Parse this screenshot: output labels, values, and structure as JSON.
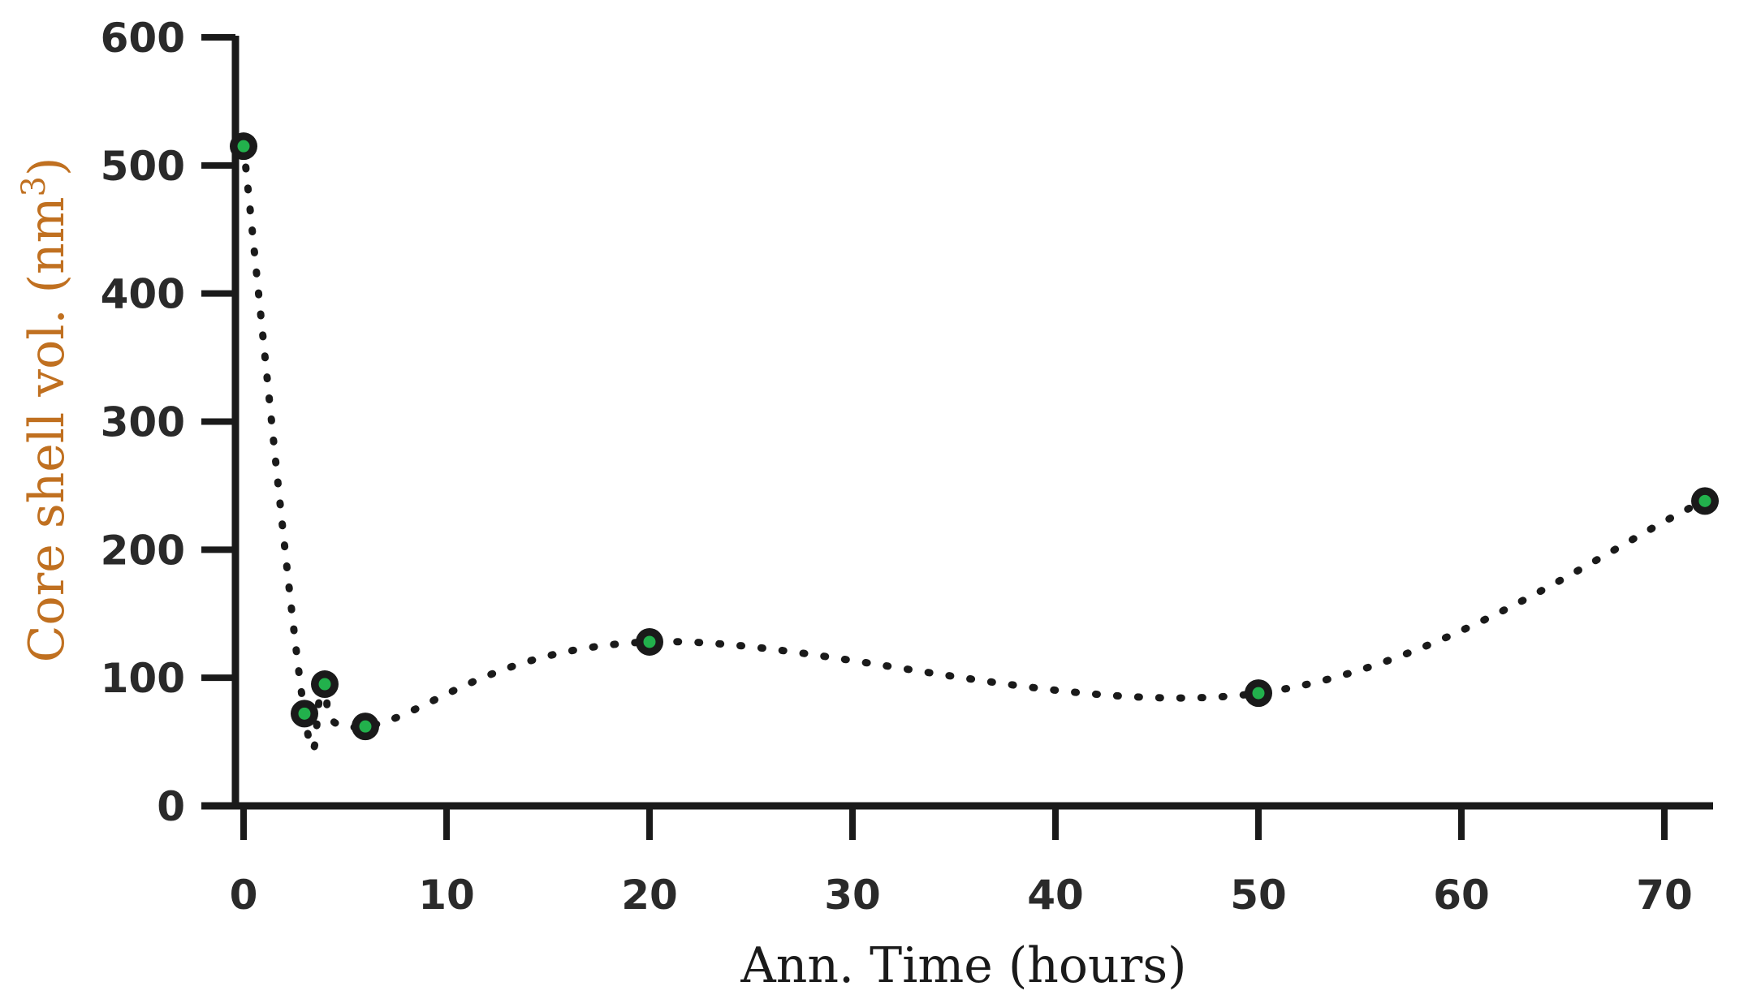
{
  "chart_data": {
    "type": "scatter",
    "title": "",
    "xlabel": "Ann. Time (hours)",
    "ylabel": "Core shell vol. (nm",
    "ylabel_superscript": "3",
    "ylabel_close": ")",
    "xlim": [
      0,
      72
    ],
    "ylim": [
      0,
      600
    ],
    "x_ticks": [
      "0",
      "10",
      "20",
      "30",
      "40",
      "50",
      "60",
      "70"
    ],
    "y_ticks": [
      "0",
      "100",
      "200",
      "300",
      "400",
      "500",
      "600"
    ],
    "grid": false,
    "legend": "none",
    "colors": {
      "axis": "#1a1a1a",
      "marker": "#1a1a1a",
      "marker_center": "#22b14c",
      "line": "#1a1a1a",
      "xlabel": "#1a1a1a",
      "ylabel": "#c07020"
    },
    "series": [
      {
        "points": [
          {
            "x": 0,
            "y": 515
          },
          {
            "x": 3,
            "y": 72
          },
          {
            "x": 4,
            "y": 95
          },
          {
            "x": 6,
            "y": 62
          },
          {
            "x": 20,
            "y": 128
          },
          {
            "x": 50,
            "y": 88
          },
          {
            "x": 72,
            "y": 238
          }
        ]
      }
    ]
  }
}
